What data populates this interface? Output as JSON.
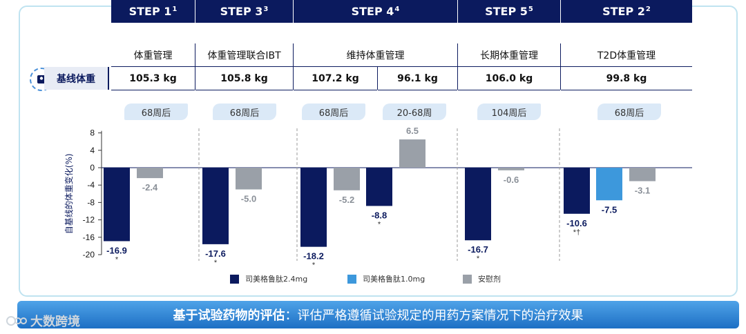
{
  "steps": [
    {
      "name": "STEP 1",
      "sup": "1",
      "label": "体重管理",
      "baselines": [
        "105.3 kg"
      ],
      "tabs": [
        "68周后"
      ]
    },
    {
      "name": "STEP 3",
      "sup": "3",
      "label": "体重管理联合IBT",
      "baselines": [
        "105.8 kg"
      ],
      "tabs": [
        "68周后"
      ]
    },
    {
      "name": "STEP 4",
      "sup": "4",
      "label": "维持体重管理",
      "baselines": [
        "107.2 kg",
        "96.1 kg"
      ],
      "tabs": [
        "68周后",
        "20-68周"
      ]
    },
    {
      "name": "STEP 5",
      "sup": "5",
      "label": "长期体重管理",
      "baselines": [
        "106.0 kg"
      ],
      "tabs": [
        "104周后"
      ]
    },
    {
      "name": "STEP 2",
      "sup": "2",
      "label": "T2D体重管理",
      "baselines": [
        "99.8 kg"
      ],
      "tabs": [
        "68周后"
      ]
    }
  ],
  "baseline_label": "基线体重",
  "chart_data": {
    "type": "bar",
    "ylabel": "自基线的体重变化(%)",
    "ylim": [
      -20,
      8
    ],
    "yticks": [
      8,
      4,
      0,
      -4,
      -8,
      -12,
      -16,
      -20
    ],
    "groups": [
      {
        "step": "STEP 1",
        "bars": [
          {
            "series": "司美格鲁肽2.4mg",
            "value": -16.9,
            "label": "-16.9",
            "mark": "*"
          },
          {
            "series": "安慰剂",
            "value": -2.4,
            "label": "-2.4",
            "mark": ""
          }
        ]
      },
      {
        "step": "STEP 3",
        "bars": [
          {
            "series": "司美格鲁肽2.4mg",
            "value": -17.6,
            "label": "-17.6",
            "mark": "*"
          },
          {
            "series": "安慰剂",
            "value": -5.0,
            "label": "-5.0",
            "mark": ""
          }
        ]
      },
      {
        "step": "STEP 4",
        "bars": [
          {
            "series": "司美格鲁肽2.4mg",
            "value": -18.2,
            "label": "-18.2",
            "mark": "*"
          },
          {
            "series": "安慰剂",
            "value": -5.2,
            "label": "-5.2",
            "mark": ""
          },
          {
            "series": "司美格鲁肽2.4mg",
            "value": -8.8,
            "label": "-8.8",
            "mark": "*"
          },
          {
            "series": "安慰剂",
            "value": 6.5,
            "label": "6.5",
            "mark": ""
          }
        ]
      },
      {
        "step": "STEP 5",
        "bars": [
          {
            "series": "司美格鲁肽2.4mg",
            "value": -16.7,
            "label": "-16.7",
            "mark": "*"
          },
          {
            "series": "安慰剂",
            "value": -0.6,
            "label": "-0.6",
            "mark": ""
          }
        ]
      },
      {
        "step": "STEP 2",
        "bars": [
          {
            "series": "司美格鲁肽2.4mg",
            "value": -10.6,
            "label": "-10.6",
            "mark": "*†"
          },
          {
            "series": "司美格鲁肽1.0mg",
            "value": -7.5,
            "label": "-7.5",
            "mark": ""
          },
          {
            "series": "安慰剂",
            "value": -3.1,
            "label": "-3.1",
            "mark": ""
          }
        ]
      }
    ],
    "legend": [
      {
        "name": "司美格鲁肽2.4mg",
        "color": "#0b1a5e"
      },
      {
        "name": "司美格鲁肽1.0mg",
        "color": "#3d98dc"
      },
      {
        "name": "安慰剂",
        "color": "#9aa0a8"
      }
    ]
  },
  "banner": {
    "bold": "基于试验药物的评估",
    "text": "：评估严格遵循试验规定的用药方案情况下的治疗效果"
  },
  "watermark": "大数跨境"
}
